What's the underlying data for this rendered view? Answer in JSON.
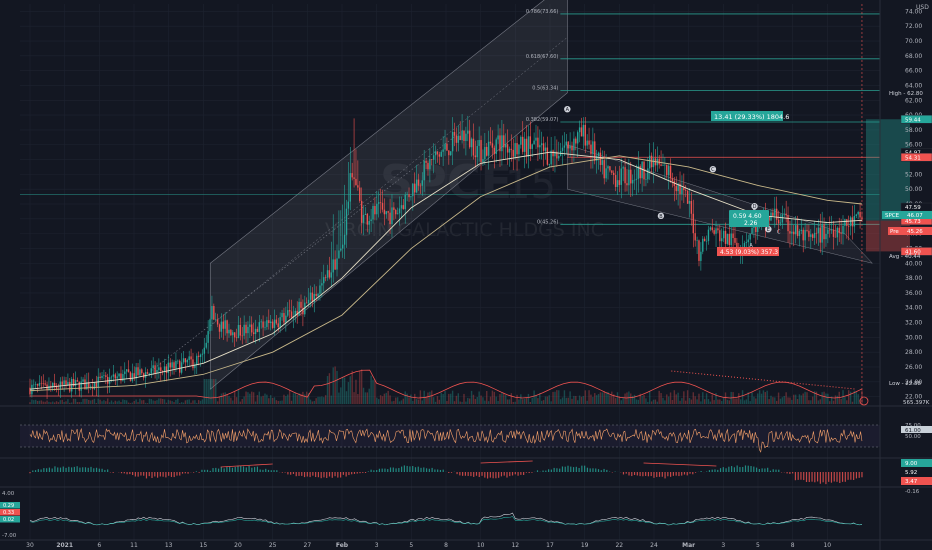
{
  "chart_data": {
    "type": "candlestick",
    "symbol": "SPCE",
    "interval": "15",
    "watermark_company": "VIRGIN GALACTIC HLDGS INC",
    "currency_label": "USD",
    "price_axis": {
      "min": 21,
      "max": 75,
      "ticks": [
        74,
        72,
        70,
        68,
        66,
        64,
        62,
        60,
        58,
        56,
        54,
        52,
        50,
        48,
        46,
        44,
        42,
        40,
        38,
        36,
        34,
        32,
        30,
        28,
        26,
        24,
        22
      ],
      "tick_labels": [
        "74.00",
        "72.00",
        "70.00",
        "68.00",
        "66.00",
        "64.00",
        "62.00",
        "60.00",
        "58.00",
        "56.00",
        "54.00",
        "52.00",
        "50.00",
        "48.00",
        "46.00",
        "44.00",
        "42.00",
        "40.00",
        "38.00",
        "36.00",
        "34.00",
        "32.00",
        "30.00",
        "28.00",
        "26.00",
        "24.00",
        "22.00"
      ]
    },
    "time_axis": {
      "labels": [
        "30",
        "2021",
        "6",
        "11",
        "13",
        "15",
        "20",
        "25",
        "27",
        "Feb",
        "3",
        "5",
        "8",
        "10",
        "12",
        "17",
        "19",
        "22",
        "24",
        "Mar",
        "3",
        "5",
        "8",
        "10"
      ],
      "last_data_index": 24
    },
    "price_path": [
      [
        0,
        23.2
      ],
      [
        0.5,
        23.0
      ],
      [
        1,
        23.4
      ],
      [
        1.5,
        23.6
      ],
      [
        2,
        24.0
      ],
      [
        2.5,
        24.6
      ],
      [
        3,
        25.0
      ],
      [
        3.5,
        25.3
      ],
      [
        4,
        25.8
      ],
      [
        4.5,
        26.4
      ],
      [
        5,
        27.2
      ],
      [
        5.2,
        33.6
      ],
      [
        5.5,
        31.5
      ],
      [
        6,
        30.8
      ],
      [
        6.5,
        31.2
      ],
      [
        7,
        32.0
      ],
      [
        7.5,
        33.0
      ],
      [
        8,
        34.5
      ],
      [
        8.5,
        37.5
      ],
      [
        9,
        42.0
      ],
      [
        9.3,
        53.0
      ],
      [
        9.6,
        46.0
      ],
      [
        10,
        47.0
      ],
      [
        10.5,
        46.5
      ],
      [
        11,
        50.0
      ],
      [
        11.5,
        53.5
      ],
      [
        12,
        55.5
      ],
      [
        12.5,
        57.5
      ],
      [
        13,
        55.0
      ],
      [
        13.5,
        56.5
      ],
      [
        14,
        55.5
      ],
      [
        14.5,
        56.0
      ],
      [
        15,
        54.5
      ],
      [
        15.5,
        56.0
      ],
      [
        16,
        57.5
      ],
      [
        16.5,
        52.5
      ],
      [
        17,
        51.5
      ],
      [
        17.5,
        52.0
      ],
      [
        18,
        53.5
      ],
      [
        18.5,
        52.0
      ],
      [
        19,
        48.0
      ],
      [
        19.3,
        41.5
      ],
      [
        19.6,
        44.5
      ],
      [
        20,
        43.5
      ],
      [
        20.5,
        42.5
      ],
      [
        21,
        45.5
      ],
      [
        21.5,
        46.5
      ],
      [
        22,
        44.5
      ],
      [
        22.5,
        43.0
      ],
      [
        23,
        44.5
      ],
      [
        23.5,
        45.0
      ],
      [
        24,
        46.1
      ]
    ],
    "moving_average_1": [
      [
        0,
        23.0
      ],
      [
        3,
        24.5
      ],
      [
        5,
        26.5
      ],
      [
        7,
        30.5
      ],
      [
        9,
        38.0
      ],
      [
        11,
        47.5
      ],
      [
        13,
        53.5
      ],
      [
        15,
        55.0
      ],
      [
        17,
        54.0
      ],
      [
        19,
        50.0
      ],
      [
        21,
        46.5
      ],
      [
        23,
        45.5
      ],
      [
        24,
        45.8
      ]
    ],
    "moving_average_2": [
      [
        0,
        22.8
      ],
      [
        3,
        23.5
      ],
      [
        5,
        25.0
      ],
      [
        7,
        28.0
      ],
      [
        9,
        33.0
      ],
      [
        11,
        42.0
      ],
      [
        13,
        49.0
      ],
      [
        15,
        53.0
      ],
      [
        17,
        54.5
      ],
      [
        19,
        53.0
      ],
      [
        21,
        50.5
      ],
      [
        23,
        48.5
      ],
      [
        24,
        48.0
      ]
    ],
    "fib_levels": [
      {
        "label": "0.786(73.66)",
        "price": 73.66
      },
      {
        "label": "0.618(67.60)",
        "price": 67.6
      },
      {
        "label": "0.5(63.34)",
        "price": 63.34
      },
      {
        "label": "0.382(59.07)",
        "price": 59.07
      },
      {
        "label": "0(45.26)",
        "price": 45.26
      }
    ],
    "price_labels": {
      "high": "High - 62.80",
      "low": "Low - 22.88",
      "current_symbol": "SPCE",
      "current_value": "46.07",
      "pre": "Pre",
      "pre_value": "45.26",
      "avg": "Avg - 40.44",
      "right_values": [
        "59.44",
        "54.97",
        "54.31",
        "47.59",
        "45.73",
        "44.46",
        "41.60"
      ]
    },
    "position_tool": {
      "profit_label": "13.41 (29.33%) 1804.6",
      "risk_label": "4.53 (9.03%) 357.3",
      "entry_label": "0.59 4.60",
      "entry_label_2": "2.26",
      "target_price": 59.44,
      "entry_price": 45.76,
      "stop_price": 41.6
    },
    "wave_labels": [
      "A",
      "B",
      "C",
      "D",
      "E",
      "A",
      "B",
      "C",
      "D"
    ],
    "volume_axis": {
      "label": "565.397K"
    },
    "rsi": {
      "upper": 75.0,
      "lower": 45.0,
      "current": "61.00",
      "tick_labels": [
        "75.00",
        "50.00"
      ]
    },
    "histogram_pane": {
      "labels": [
        "9.00",
        "5.92",
        "3.47"
      ]
    },
    "oscillator_pane": {
      "labels": [
        "0.29",
        "0.33",
        "0.02",
        "4.00",
        "-7.00",
        "-0.16"
      ]
    }
  },
  "colors": {
    "background": "#131722",
    "up": "#26a69a",
    "down": "#ef5350",
    "grid": "#1e2330",
    "ma1": "#e8e1c8",
    "ma2": "#c9b98a",
    "fib": "#2a9d8f",
    "channel_fill": "#ffffff"
  }
}
